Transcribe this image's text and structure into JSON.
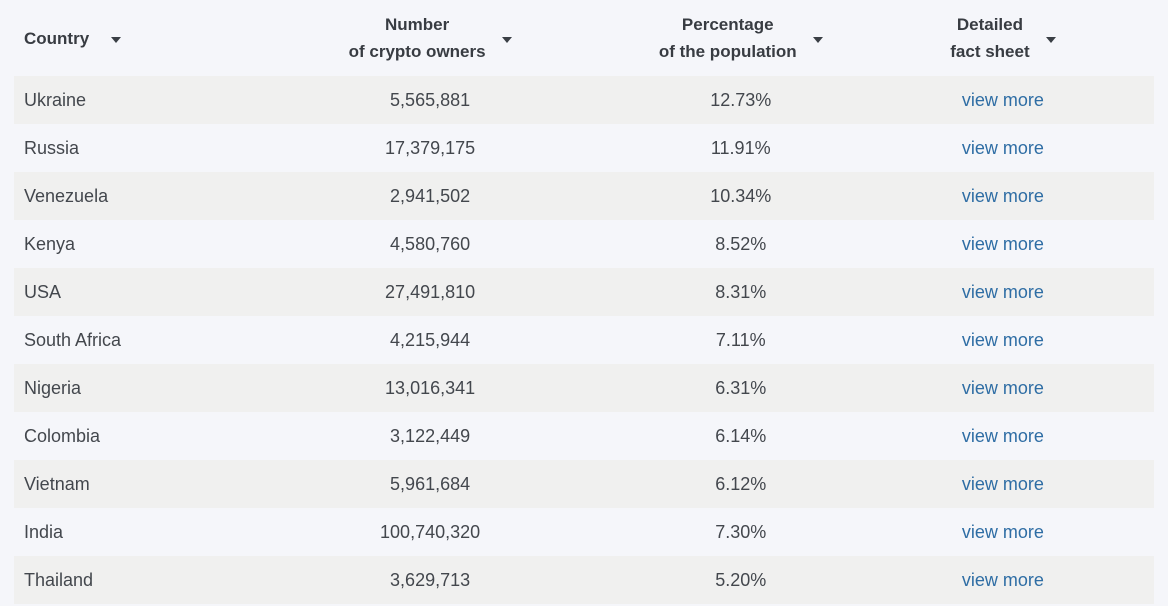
{
  "table": {
    "columns": [
      {
        "line1": "Country",
        "line2": ""
      },
      {
        "line1": "Number",
        "line2": "of crypto owners"
      },
      {
        "line1": "Percentage",
        "line2": "of the population"
      },
      {
        "line1": "Detailed",
        "line2": "fact sheet"
      }
    ],
    "link_label": "view more",
    "rows": [
      {
        "country": "Ukraine",
        "owners": "5,565,881",
        "percentage": "12.73%"
      },
      {
        "country": "Russia",
        "owners": "17,379,175",
        "percentage": "11.91%"
      },
      {
        "country": "Venezuela",
        "owners": "2,941,502",
        "percentage": "10.34%"
      },
      {
        "country": "Kenya",
        "owners": "4,580,760",
        "percentage": "8.52%"
      },
      {
        "country": "USA",
        "owners": "27,491,810",
        "percentage": "8.31%"
      },
      {
        "country": "South Africa",
        "owners": "4,215,944",
        "percentage": "7.11%"
      },
      {
        "country": "Nigeria",
        "owners": "13,016,341",
        "percentage": "6.31%"
      },
      {
        "country": "Colombia",
        "owners": "3,122,449",
        "percentage": "6.14%"
      },
      {
        "country": "Vietnam",
        "owners": "5,961,684",
        "percentage": "6.12%"
      },
      {
        "country": "India",
        "owners": "100,740,320",
        "percentage": "7.30%"
      },
      {
        "country": "Thailand",
        "owners": "3,629,713",
        "percentage": "5.20%"
      }
    ]
  },
  "colors": {
    "background": "#f5f6fa",
    "row_alt": "#f0f0ef",
    "header_text": "#383c42",
    "body_text": "#43474d",
    "link": "#2e6da4"
  }
}
